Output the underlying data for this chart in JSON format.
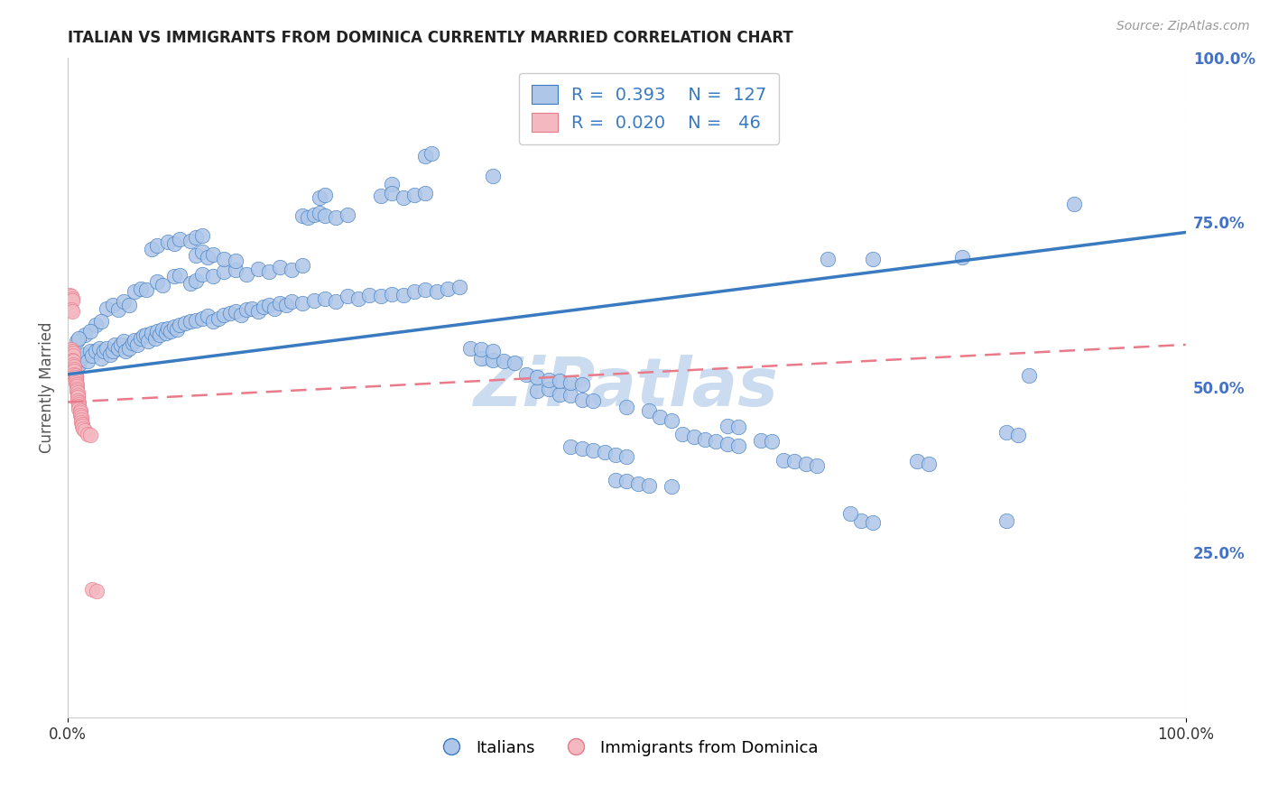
{
  "title": "ITALIAN VS IMMIGRANTS FROM DOMINICA CURRENTLY MARRIED CORRELATION CHART",
  "source": "Source: ZipAtlas.com",
  "ylabel": "Currently Married",
  "watermark": "ZiPatlas",
  "xlim": [
    0,
    1
  ],
  "ylim": [
    0,
    1
  ],
  "xtick_positions": [
    0.0,
    1.0
  ],
  "xtick_labels": [
    "0.0%",
    "100.0%"
  ],
  "ytick_labels_right": [
    "100.0%",
    "75.0%",
    "50.0%",
    "25.0%"
  ],
  "ytick_positions_right": [
    1.0,
    0.75,
    0.5,
    0.25
  ],
  "legend_entries": [
    {
      "r_val": "0.393",
      "n_val": "127",
      "color": "#aec6e8"
    },
    {
      "r_val": "0.020",
      "n_val": " 46",
      "color": "#f4b8c1"
    }
  ],
  "legend_labels": [
    "Italians",
    "Immigrants from Dominica"
  ],
  "blue_scatter": [
    [
      0.005,
      0.54
    ],
    [
      0.008,
      0.53
    ],
    [
      0.01,
      0.535
    ],
    [
      0.012,
      0.545
    ],
    [
      0.015,
      0.55
    ],
    [
      0.018,
      0.54
    ],
    [
      0.02,
      0.555
    ],
    [
      0.022,
      0.548
    ],
    [
      0.025,
      0.555
    ],
    [
      0.028,
      0.56
    ],
    [
      0.03,
      0.545
    ],
    [
      0.032,
      0.555
    ],
    [
      0.035,
      0.56
    ],
    [
      0.038,
      0.55
    ],
    [
      0.04,
      0.555
    ],
    [
      0.042,
      0.565
    ],
    [
      0.045,
      0.56
    ],
    [
      0.048,
      0.565
    ],
    [
      0.05,
      0.57
    ],
    [
      0.052,
      0.555
    ],
    [
      0.055,
      0.56
    ],
    [
      0.058,
      0.568
    ],
    [
      0.06,
      0.572
    ],
    [
      0.062,
      0.565
    ],
    [
      0.065,
      0.575
    ],
    [
      0.068,
      0.578
    ],
    [
      0.07,
      0.58
    ],
    [
      0.072,
      0.57
    ],
    [
      0.075,
      0.582
    ],
    [
      0.078,
      0.575
    ],
    [
      0.08,
      0.585
    ],
    [
      0.082,
      0.58
    ],
    [
      0.085,
      0.588
    ],
    [
      0.088,
      0.582
    ],
    [
      0.09,
      0.59
    ],
    [
      0.092,
      0.585
    ],
    [
      0.095,
      0.592
    ],
    [
      0.098,
      0.588
    ],
    [
      0.1,
      0.595
    ],
    [
      0.105,
      0.598
    ],
    [
      0.11,
      0.6
    ],
    [
      0.115,
      0.602
    ],
    [
      0.12,
      0.605
    ],
    [
      0.125,
      0.608
    ],
    [
      0.13,
      0.6
    ],
    [
      0.135,
      0.605
    ],
    [
      0.14,
      0.61
    ],
    [
      0.145,
      0.612
    ],
    [
      0.15,
      0.615
    ],
    [
      0.155,
      0.61
    ],
    [
      0.16,
      0.618
    ],
    [
      0.165,
      0.62
    ],
    [
      0.17,
      0.615
    ],
    [
      0.175,
      0.622
    ],
    [
      0.18,
      0.625
    ],
    [
      0.185,
      0.62
    ],
    [
      0.19,
      0.628
    ],
    [
      0.195,
      0.625
    ],
    [
      0.2,
      0.63
    ],
    [
      0.21,
      0.628
    ],
    [
      0.22,
      0.632
    ],
    [
      0.23,
      0.635
    ],
    [
      0.24,
      0.63
    ],
    [
      0.25,
      0.638
    ],
    [
      0.26,
      0.635
    ],
    [
      0.27,
      0.64
    ],
    [
      0.28,
      0.638
    ],
    [
      0.29,
      0.642
    ],
    [
      0.3,
      0.64
    ],
    [
      0.31,
      0.645
    ],
    [
      0.32,
      0.648
    ],
    [
      0.33,
      0.645
    ],
    [
      0.34,
      0.65
    ],
    [
      0.35,
      0.652
    ],
    [
      0.035,
      0.62
    ],
    [
      0.04,
      0.625
    ],
    [
      0.045,
      0.618
    ],
    [
      0.05,
      0.63
    ],
    [
      0.055,
      0.625
    ],
    [
      0.025,
      0.595
    ],
    [
      0.03,
      0.6
    ],
    [
      0.015,
      0.58
    ],
    [
      0.02,
      0.585
    ],
    [
      0.008,
      0.57
    ],
    [
      0.01,
      0.575
    ],
    [
      0.06,
      0.645
    ],
    [
      0.065,
      0.65
    ],
    [
      0.07,
      0.648
    ],
    [
      0.08,
      0.66
    ],
    [
      0.085,
      0.655
    ],
    [
      0.095,
      0.668
    ],
    [
      0.1,
      0.67
    ],
    [
      0.11,
      0.658
    ],
    [
      0.115,
      0.662
    ],
    [
      0.12,
      0.672
    ],
    [
      0.13,
      0.668
    ],
    [
      0.14,
      0.675
    ],
    [
      0.15,
      0.678
    ],
    [
      0.16,
      0.672
    ],
    [
      0.17,
      0.68
    ],
    [
      0.18,
      0.675
    ],
    [
      0.19,
      0.682
    ],
    [
      0.2,
      0.678
    ],
    [
      0.21,
      0.685
    ],
    [
      0.075,
      0.71
    ],
    [
      0.08,
      0.715
    ],
    [
      0.09,
      0.72
    ],
    [
      0.095,
      0.718
    ],
    [
      0.1,
      0.725
    ],
    [
      0.11,
      0.722
    ],
    [
      0.115,
      0.728
    ],
    [
      0.12,
      0.73
    ],
    [
      0.115,
      0.7
    ],
    [
      0.12,
      0.705
    ],
    [
      0.125,
      0.698
    ],
    [
      0.13,
      0.702
    ],
    [
      0.14,
      0.695
    ],
    [
      0.15,
      0.692
    ],
    [
      0.21,
      0.76
    ],
    [
      0.215,
      0.758
    ],
    [
      0.22,
      0.762
    ],
    [
      0.225,
      0.765
    ],
    [
      0.23,
      0.76
    ],
    [
      0.24,
      0.758
    ],
    [
      0.25,
      0.762
    ],
    [
      0.225,
      0.788
    ],
    [
      0.23,
      0.792
    ],
    [
      0.29,
      0.808
    ],
    [
      0.28,
      0.79
    ],
    [
      0.29,
      0.795
    ],
    [
      0.3,
      0.788
    ],
    [
      0.31,
      0.792
    ],
    [
      0.32,
      0.795
    ],
    [
      0.32,
      0.85
    ],
    [
      0.325,
      0.855
    ],
    [
      0.38,
      0.82
    ],
    [
      0.42,
      0.495
    ],
    [
      0.43,
      0.498
    ],
    [
      0.44,
      0.49
    ],
    [
      0.45,
      0.488
    ],
    [
      0.46,
      0.482
    ],
    [
      0.47,
      0.48
    ],
    [
      0.5,
      0.47
    ],
    [
      0.52,
      0.465
    ],
    [
      0.53,
      0.455
    ],
    [
      0.54,
      0.45
    ],
    [
      0.41,
      0.52
    ],
    [
      0.42,
      0.515
    ],
    [
      0.43,
      0.512
    ],
    [
      0.44,
      0.51
    ],
    [
      0.45,
      0.508
    ],
    [
      0.46,
      0.505
    ],
    [
      0.37,
      0.545
    ],
    [
      0.38,
      0.542
    ],
    [
      0.39,
      0.54
    ],
    [
      0.4,
      0.538
    ],
    [
      0.36,
      0.56
    ],
    [
      0.37,
      0.558
    ],
    [
      0.38,
      0.555
    ],
    [
      0.55,
      0.43
    ],
    [
      0.56,
      0.425
    ],
    [
      0.57,
      0.422
    ],
    [
      0.58,
      0.418
    ],
    [
      0.59,
      0.415
    ],
    [
      0.6,
      0.412
    ],
    [
      0.45,
      0.41
    ],
    [
      0.46,
      0.408
    ],
    [
      0.47,
      0.405
    ],
    [
      0.48,
      0.402
    ],
    [
      0.49,
      0.398
    ],
    [
      0.5,
      0.395
    ],
    [
      0.49,
      0.36
    ],
    [
      0.5,
      0.358
    ],
    [
      0.51,
      0.355
    ],
    [
      0.52,
      0.352
    ],
    [
      0.54,
      0.35
    ],
    [
      0.64,
      0.39
    ],
    [
      0.65,
      0.388
    ],
    [
      0.66,
      0.385
    ],
    [
      0.67,
      0.382
    ],
    [
      0.62,
      0.42
    ],
    [
      0.63,
      0.418
    ],
    [
      0.59,
      0.442
    ],
    [
      0.6,
      0.44
    ],
    [
      0.71,
      0.298
    ],
    [
      0.72,
      0.295
    ],
    [
      0.7,
      0.31
    ],
    [
      0.84,
      0.298
    ],
    [
      0.76,
      0.388
    ],
    [
      0.77,
      0.385
    ],
    [
      0.86,
      0.518
    ],
    [
      0.84,
      0.432
    ],
    [
      0.85,
      0.428
    ],
    [
      0.8,
      0.698
    ],
    [
      0.68,
      0.695
    ],
    [
      0.72,
      0.695
    ],
    [
      0.9,
      0.778
    ]
  ],
  "pink_scatter": [
    [
      0.002,
      0.64
    ],
    [
      0.003,
      0.638
    ],
    [
      0.004,
      0.635
    ],
    [
      0.004,
      0.632
    ],
    [
      0.003,
      0.618
    ],
    [
      0.004,
      0.615
    ],
    [
      0.003,
      0.558
    ],
    [
      0.004,
      0.555
    ],
    [
      0.005,
      0.552
    ],
    [
      0.005,
      0.548
    ],
    [
      0.004,
      0.542
    ],
    [
      0.005,
      0.54
    ],
    [
      0.005,
      0.535
    ],
    [
      0.006,
      0.532
    ],
    [
      0.006,
      0.528
    ],
    [
      0.006,
      0.525
    ],
    [
      0.006,
      0.52
    ],
    [
      0.007,
      0.518
    ],
    [
      0.007,
      0.515
    ],
    [
      0.007,
      0.512
    ],
    [
      0.007,
      0.508
    ],
    [
      0.008,
      0.505
    ],
    [
      0.008,
      0.502
    ],
    [
      0.008,
      0.498
    ],
    [
      0.008,
      0.495
    ],
    [
      0.009,
      0.492
    ],
    [
      0.009,
      0.488
    ],
    [
      0.009,
      0.485
    ],
    [
      0.009,
      0.48
    ],
    [
      0.01,
      0.478
    ],
    [
      0.01,
      0.475
    ],
    [
      0.01,
      0.472
    ],
    [
      0.01,
      0.468
    ],
    [
      0.011,
      0.465
    ],
    [
      0.011,
      0.462
    ],
    [
      0.011,
      0.458
    ],
    [
      0.012,
      0.455
    ],
    [
      0.012,
      0.452
    ],
    [
      0.012,
      0.448
    ],
    [
      0.013,
      0.445
    ],
    [
      0.013,
      0.442
    ],
    [
      0.014,
      0.438
    ],
    [
      0.015,
      0.435
    ],
    [
      0.018,
      0.43
    ],
    [
      0.02,
      0.428
    ],
    [
      0.022,
      0.195
    ],
    [
      0.026,
      0.192
    ]
  ],
  "blue_line_x": [
    0.0,
    1.0
  ],
  "blue_line_y": [
    0.52,
    0.735
  ],
  "pink_line_x": [
    0.0,
    1.0
  ],
  "pink_line_y": [
    0.478,
    0.565
  ],
  "blue_line_color": "#3a7ac0",
  "pink_line_color": "#e87a8a",
  "blue_scatter_color": "#aec6e8",
  "pink_scatter_color": "#f4b8c1",
  "grid_color": "#d8d8e8",
  "background_color": "#ffffff",
  "title_color": "#222222",
  "right_axis_label_color": "#4472c4",
  "watermark_color": "#ccdcf0",
  "watermark_text": "ZiPatlas"
}
